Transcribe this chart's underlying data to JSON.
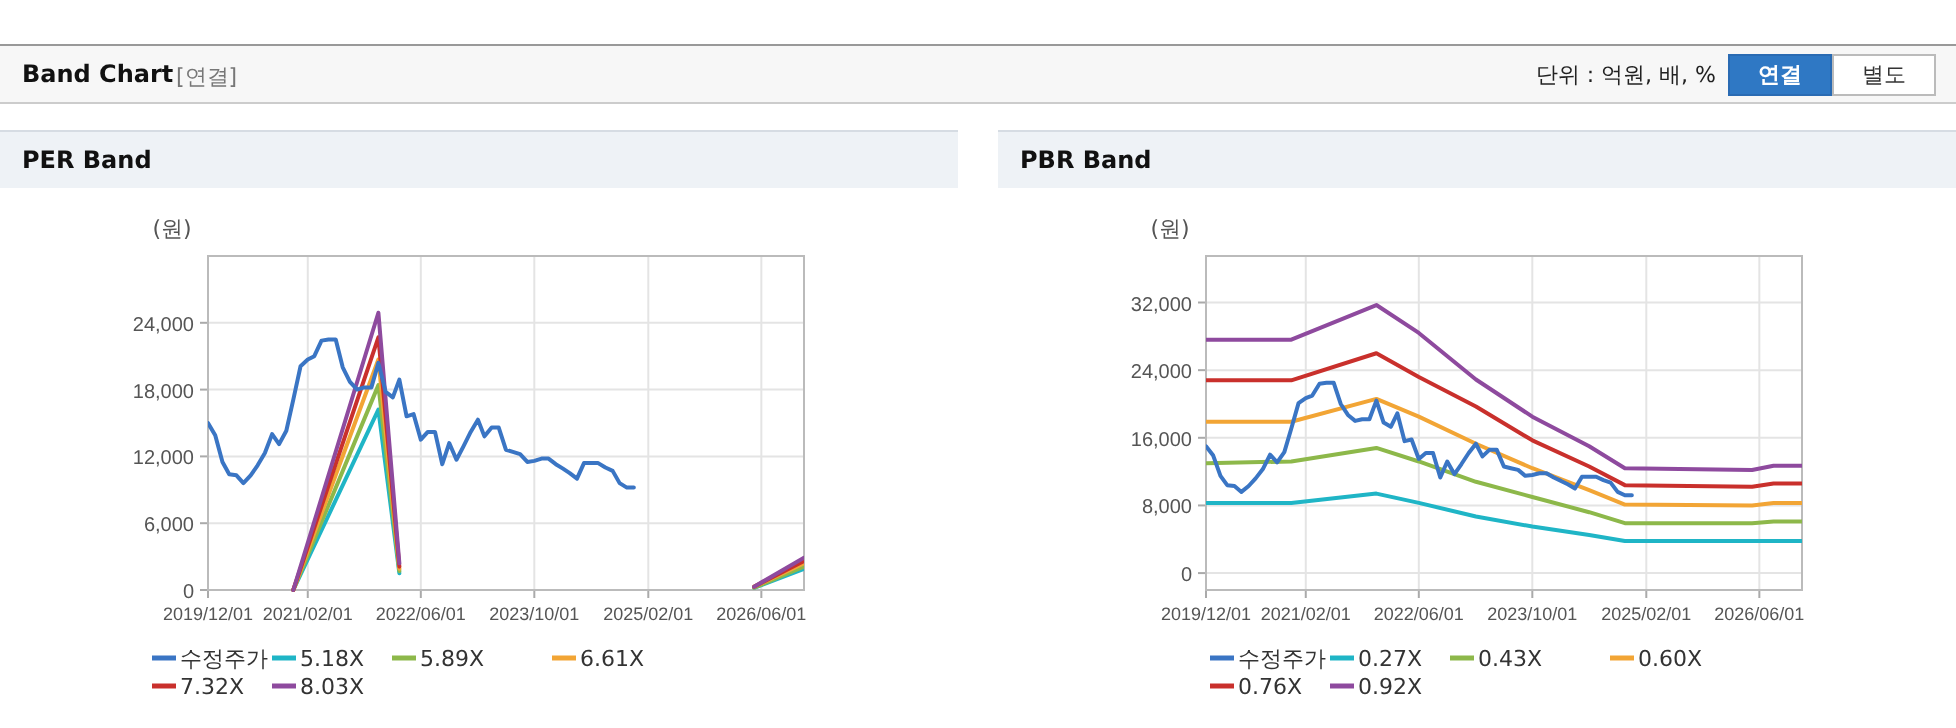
{
  "chart_data": [
    {
      "type": "other",
      "title": "Band Chart",
      "annotations": [
        "[연결]",
        "단위 : 억원, 배, %",
        "연결",
        "별도"
      ]
    },
    {
      "type": "line",
      "title": "PER Band",
      "ylabel": "(원)",
      "xlim": [
        "2019-12-01",
        "2026-12-01"
      ],
      "xticks": [
        {
          "value": "2019-12-01",
          "label": "2019/12/01"
        },
        {
          "value": "2021-02-01",
          "label": "2021/02/01"
        },
        {
          "value": "2022-06-01",
          "label": "2022/06/01"
        },
        {
          "value": "2023-10-01",
          "label": "2023/10/01"
        },
        {
          "value": "2025-02-01",
          "label": "2025/02/01"
        },
        {
          "value": "2026-06-01",
          "label": "2026/06/01"
        }
      ],
      "ylim": [
        0,
        30000
      ],
      "yticks": [
        0,
        {
          "value": 6000,
          "label": "6,000"
        },
        {
          "value": 12000,
          "label": "12,000"
        },
        {
          "value": 18000,
          "label": "18,000"
        },
        {
          "value": 24000,
          "label": "24,000"
        }
      ],
      "grid": true,
      "legend": "bottom",
      "series": [
        {
          "name": "수정주가",
          "color": "#3a75c4",
          "x": [
            "2019-12",
            "2020-01",
            "2020-02",
            "2020-03",
            "2020-04",
            "2020-05",
            "2020-06",
            "2020-07",
            "2020-08",
            "2020-09",
            "2020-10",
            "2020-11",
            "2020-12",
            "2021-01",
            "2021-02",
            "2021-03",
            "2021-04",
            "2021-05",
            "2021-06",
            "2021-07",
            "2021-08",
            "2021-09",
            "2021-10",
            "2021-11",
            "2021-12",
            "2022-01",
            "2022-02",
            "2022-03",
            "2022-04",
            "2022-05",
            "2022-06",
            "2022-07",
            "2022-08",
            "2022-09",
            "2022-10",
            "2022-11",
            "2022-12",
            "2023-01",
            "2023-02",
            "2023-03",
            "2023-04",
            "2023-05",
            "2023-06",
            "2023-07",
            "2023-08",
            "2023-09",
            "2023-10",
            "2023-11",
            "2023-12",
            "2024-01",
            "2024-02",
            "2024-03",
            "2024-04",
            "2024-05",
            "2024-06",
            "2024-07",
            "2024-08",
            "2024-09",
            "2024-10",
            "2024-11",
            "2024-12"
          ],
          "values": [
            15000,
            13900,
            11500,
            10400,
            10300,
            9600,
            10300,
            11200,
            12300,
            14000,
            13100,
            14300,
            17100,
            20100,
            20700,
            21000,
            22400,
            22500,
            22500,
            20000,
            18700,
            18000,
            18200,
            18200,
            20400,
            17800,
            17300,
            18900,
            15600,
            15800,
            13500,
            14200,
            14200,
            11300,
            13200,
            11700,
            12900,
            14200,
            15300,
            13800,
            14600,
            14600,
            12600,
            12400,
            12200,
            11500,
            11600,
            11800,
            11800,
            11300,
            10900,
            10500,
            10000,
            11400,
            11400,
            11400,
            11000,
            10700,
            9600,
            9200,
            9200
          ]
        },
        {
          "name": "5.18X",
          "color": "#1fb5c6",
          "x": [
            "2020-12",
            "2021-12",
            "2022-03",
            "2024-01",
            "2026-05",
            "2026-12"
          ],
          "values": [
            0,
            16200,
            1500,
            null,
            200,
            1900
          ]
        },
        {
          "name": "5.89X",
          "color": "#8db84a",
          "x": [
            "2020-12",
            "2021-12",
            "2022-03",
            "2024-01",
            "2026-05",
            "2026-12"
          ],
          "values": [
            0,
            18400,
            1700,
            null,
            200,
            2100
          ]
        },
        {
          "name": "6.61X",
          "color": "#f2a535",
          "x": [
            "2020-12",
            "2021-12",
            "2022-03",
            "2024-01",
            "2026-05",
            "2026-12"
          ],
          "values": [
            0,
            20700,
            1900,
            null,
            300,
            2400
          ]
        },
        {
          "name": "7.32X",
          "color": "#c9302c",
          "x": [
            "2020-12",
            "2021-12",
            "2022-03",
            "2024-01",
            "2026-05",
            "2026-12"
          ],
          "values": [
            0,
            22700,
            2100,
            null,
            300,
            2600
          ]
        },
        {
          "name": "8.03X",
          "color": "#8e4a9e",
          "x": [
            "2020-12",
            "2021-12",
            "2022-03",
            "2024-01",
            "2026-05",
            "2026-12"
          ],
          "values": [
            0,
            24900,
            2400,
            null,
            300,
            2900
          ]
        }
      ]
    },
    {
      "type": "line",
      "title": "PBR Band",
      "ylabel": "(원)",
      "xlim": [
        "2019-12-01",
        "2026-12-01"
      ],
      "xticks": [
        {
          "value": "2019-12-01",
          "label": "2019/12/01"
        },
        {
          "value": "2021-02-01",
          "label": "2021/02/01"
        },
        {
          "value": "2022-06-01",
          "label": "2022/06/01"
        },
        {
          "value": "2023-10-01",
          "label": "2023/10/01"
        },
        {
          "value": "2025-02-01",
          "label": "2025/02/01"
        },
        {
          "value": "2026-06-01",
          "label": "2026/06/01"
        }
      ],
      "ylim": [
        -2000,
        37500
      ],
      "yticks": [
        0,
        {
          "value": 8000,
          "label": "8,000"
        },
        {
          "value": 16000,
          "label": "16,000"
        },
        {
          "value": 24000,
          "label": "24,000"
        },
        {
          "value": 32000,
          "label": "32,000"
        }
      ],
      "grid": true,
      "legend": "bottom",
      "series": [
        {
          "name": "수정주가",
          "color": "#3a75c4",
          "x": [
            "2019-12",
            "2020-01",
            "2020-02",
            "2020-03",
            "2020-04",
            "2020-05",
            "2020-06",
            "2020-07",
            "2020-08",
            "2020-09",
            "2020-10",
            "2020-11",
            "2020-12",
            "2021-01",
            "2021-02",
            "2021-03",
            "2021-04",
            "2021-05",
            "2021-06",
            "2021-07",
            "2021-08",
            "2021-09",
            "2021-10",
            "2021-11",
            "2021-12",
            "2022-01",
            "2022-02",
            "2022-03",
            "2022-04",
            "2022-05",
            "2022-06",
            "2022-07",
            "2022-08",
            "2022-09",
            "2022-10",
            "2022-11",
            "2022-12",
            "2023-01",
            "2023-02",
            "2023-03",
            "2023-04",
            "2023-05",
            "2023-06",
            "2023-07",
            "2023-08",
            "2023-09",
            "2023-10",
            "2023-11",
            "2023-12",
            "2024-01",
            "2024-02",
            "2024-03",
            "2024-04",
            "2024-05",
            "2024-06",
            "2024-07",
            "2024-08",
            "2024-09",
            "2024-10",
            "2024-11",
            "2024-12"
          ],
          "values": [
            15000,
            13900,
            11500,
            10400,
            10300,
            9600,
            10300,
            11200,
            12300,
            14000,
            13100,
            14300,
            17100,
            20100,
            20700,
            21000,
            22400,
            22500,
            22500,
            20000,
            18700,
            18000,
            18200,
            18200,
            20400,
            17800,
            17300,
            18900,
            15600,
            15800,
            13500,
            14200,
            14200,
            11300,
            13200,
            11700,
            12900,
            14200,
            15300,
            13800,
            14600,
            14600,
            12600,
            12400,
            12200,
            11500,
            11600,
            11800,
            11800,
            11300,
            10900,
            10500,
            10000,
            11400,
            11400,
            11400,
            11000,
            10700,
            9600,
            9200,
            9200
          ]
        },
        {
          "name": "0.27X",
          "color": "#1fb5c6",
          "x": [
            "2019-12",
            "2020-12",
            "2021-12",
            "2022-06",
            "2023-02",
            "2023-10",
            "2024-06",
            "2024-11",
            "2026-05",
            "2026-08",
            "2026-12"
          ],
          "values": [
            8300,
            8300,
            9400,
            8300,
            6700,
            5500,
            4500,
            3800,
            3800,
            3800,
            3800
          ]
        },
        {
          "name": "0.43X",
          "color": "#8db84a",
          "x": [
            "2019-12",
            "2020-12",
            "2021-12",
            "2022-06",
            "2023-02",
            "2023-10",
            "2024-06",
            "2024-11",
            "2026-05",
            "2026-08",
            "2026-12"
          ],
          "values": [
            13000,
            13200,
            14800,
            13200,
            10800,
            9000,
            7200,
            5900,
            5900,
            6100,
            6100
          ]
        },
        {
          "name": "0.60X",
          "color": "#f2a535",
          "x": [
            "2019-12",
            "2020-12",
            "2021-12",
            "2022-06",
            "2023-02",
            "2023-10",
            "2024-06",
            "2024-11",
            "2026-05",
            "2026-08",
            "2026-12"
          ],
          "values": [
            17900,
            17900,
            20600,
            18500,
            15300,
            12400,
            9800,
            8100,
            8000,
            8300,
            8300
          ]
        },
        {
          "name": "0.76X",
          "color": "#c9302c",
          "x": [
            "2019-12",
            "2020-12",
            "2021-12",
            "2022-06",
            "2023-02",
            "2023-10",
            "2024-06",
            "2024-11",
            "2026-05",
            "2026-08",
            "2026-12"
          ],
          "values": [
            22800,
            22800,
            26000,
            23200,
            19700,
            15700,
            12600,
            10400,
            10200,
            10600,
            10600
          ]
        },
        {
          "name": "0.92X",
          "color": "#8e4a9e",
          "x": [
            "2019-12",
            "2020-12",
            "2021-12",
            "2022-06",
            "2023-02",
            "2023-10",
            "2024-06",
            "2024-11",
            "2026-05",
            "2026-08",
            "2026-12"
          ],
          "values": [
            27600,
            27600,
            31700,
            28400,
            22900,
            18500,
            15000,
            12400,
            12200,
            12700,
            12700
          ]
        }
      ]
    }
  ]
}
